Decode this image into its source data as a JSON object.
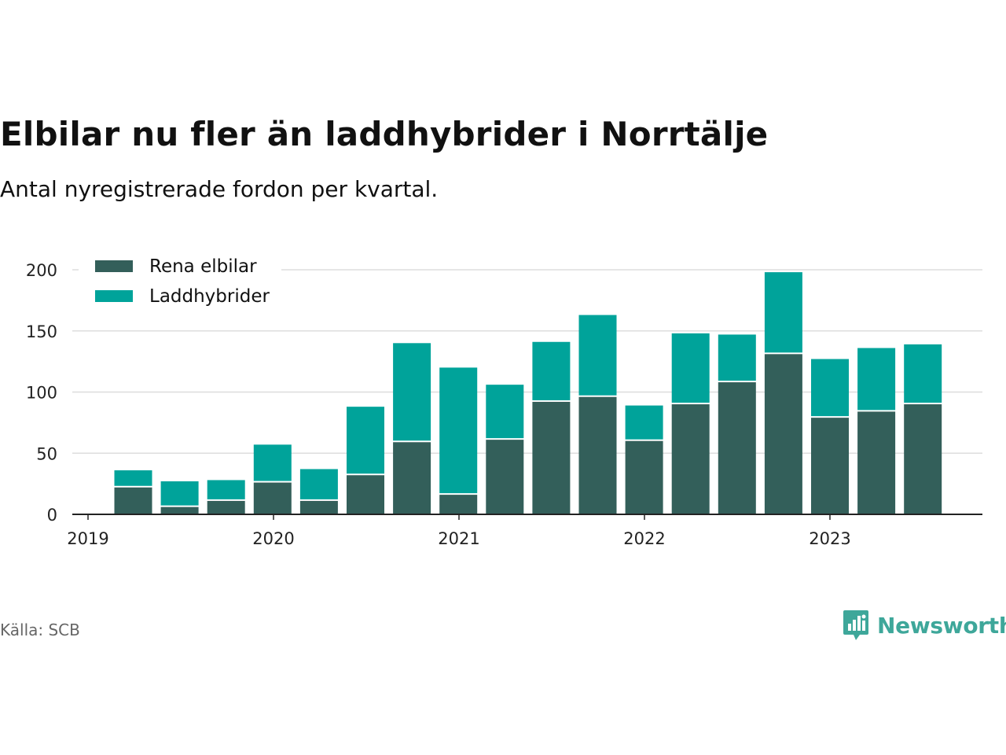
{
  "title": "Elbilar nu fler än laddhybrider i Norrtälje",
  "subtitle": "Antal nyregistrerade fordon per kvartal.",
  "source": "Källa: SCB",
  "brand": "Newsworthy",
  "colors": {
    "electric": "#335f5a",
    "hybrid": "#00a39a",
    "grid": "#dddddd",
    "axis": "#222222",
    "brand": "#3ea79a"
  },
  "chart_data": {
    "type": "bar",
    "stacked": true,
    "title": "Elbilar nu fler än laddhybrider i Norrtälje",
    "subtitle": "Antal nyregistrerade fordon per kvartal.",
    "xlabel": "",
    "ylabel": "",
    "ylim": [
      0,
      200
    ],
    "yticks": [
      0,
      50,
      100,
      150,
      200
    ],
    "xtick_labels": [
      "2019",
      "2020",
      "2021",
      "2022",
      "2023"
    ],
    "categories": [
      "2019 Q2",
      "2019 Q3",
      "2019 Q4",
      "2020 Q1",
      "2020 Q2",
      "2020 Q3",
      "2020 Q4",
      "2021 Q1",
      "2021 Q2",
      "2021 Q3",
      "2021 Q4",
      "2022 Q1",
      "2022 Q2",
      "2022 Q3",
      "2022 Q4",
      "2023 Q1",
      "2023 Q2",
      "2023 Q3"
    ],
    "series": [
      {
        "name": "Rena elbilar",
        "values": [
          22,
          6,
          11,
          26,
          11,
          32,
          59,
          16,
          61,
          92,
          96,
          60,
          90,
          108,
          131,
          79,
          84,
          90
        ]
      },
      {
        "name": "Laddhybrider",
        "values": [
          14,
          21,
          17,
          31,
          26,
          56,
          81,
          104,
          45,
          49,
          67,
          29,
          58,
          39,
          67,
          48,
          52,
          49
        ]
      }
    ],
    "legend_position": "top-left",
    "grid": true
  }
}
